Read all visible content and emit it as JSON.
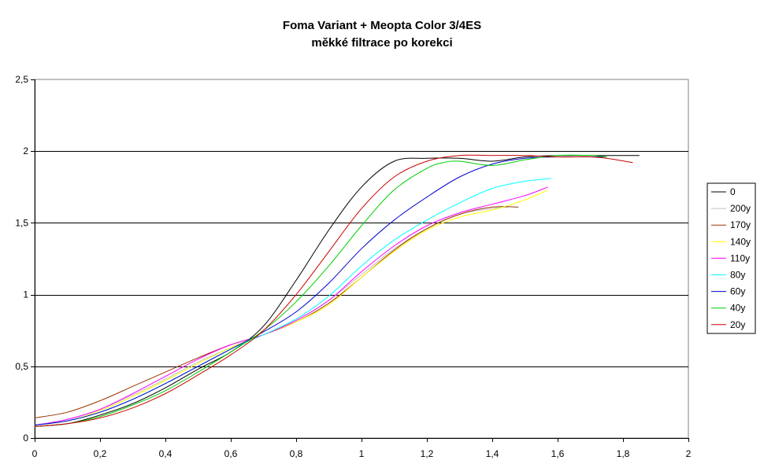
{
  "chart_data": {
    "type": "line",
    "title": "Foma Variant + Meopta Color 3/4ES",
    "subtitle": "měkké filtrace po korekci",
    "xlabel": "",
    "ylabel": "",
    "xlim": [
      0,
      2
    ],
    "ylim": [
      0,
      2.5
    ],
    "x_ticks": [
      0,
      0.2,
      0.4,
      0.6,
      0.8,
      1,
      1.2,
      1.4,
      1.6,
      1.8,
      2
    ],
    "x_tick_labels": [
      "0",
      "0,2",
      "0,4",
      "0,6",
      "0,8",
      "1",
      "1,2",
      "1,4",
      "1,6",
      "1,8",
      "2"
    ],
    "y_ticks": [
      0,
      0.5,
      1,
      1.5,
      2,
      2.5
    ],
    "y_tick_labels": [
      "0",
      "0,5",
      "1",
      "1,5",
      "2",
      "2,5"
    ],
    "grid": "horizontal",
    "legend_position": "right",
    "series": [
      {
        "name": "0",
        "color": "#000000",
        "x": [
          0,
          0.1,
          0.2,
          0.3,
          0.4,
          0.5,
          0.6,
          0.7,
          0.8,
          0.9,
          1.0,
          1.1,
          1.2,
          1.3,
          1.4,
          1.5,
          1.6,
          1.7,
          1.85
        ],
        "y": [
          0.08,
          0.1,
          0.16,
          0.24,
          0.35,
          0.48,
          0.6,
          0.78,
          1.1,
          1.45,
          1.75,
          1.93,
          1.95,
          1.95,
          1.93,
          1.96,
          1.97,
          1.97,
          1.97
        ]
      },
      {
        "name": "200y",
        "color": "#c0c0c0",
        "x": [
          0,
          0.1,
          0.2,
          0.3,
          0.4,
          0.5,
          0.6,
          0.7,
          0.8,
          0.9,
          1.0,
          1.1,
          1.2,
          1.3,
          1.4,
          1.45
        ],
        "y": [
          0.09,
          0.13,
          0.2,
          0.3,
          0.41,
          0.53,
          0.63,
          0.72,
          0.82,
          0.96,
          1.14,
          1.32,
          1.46,
          1.56,
          1.6,
          1.61
        ]
      },
      {
        "name": "170y",
        "color": "#993300",
        "x": [
          0,
          0.1,
          0.2,
          0.3,
          0.4,
          0.5,
          0.6,
          0.7,
          0.8,
          0.9,
          1.0,
          1.1,
          1.2,
          1.3,
          1.4,
          1.48
        ],
        "y": [
          0.14,
          0.18,
          0.26,
          0.36,
          0.46,
          0.56,
          0.65,
          0.72,
          0.81,
          0.94,
          1.12,
          1.31,
          1.46,
          1.56,
          1.61,
          1.61
        ]
      },
      {
        "name": "140y",
        "color": "#ffff00",
        "x": [
          0,
          0.1,
          0.2,
          0.3,
          0.4,
          0.5,
          0.6,
          0.7,
          0.8,
          0.9,
          1.0,
          1.1,
          1.2,
          1.3,
          1.4,
          1.5,
          1.57
        ],
        "y": [
          0.09,
          0.12,
          0.19,
          0.29,
          0.4,
          0.52,
          0.63,
          0.72,
          0.81,
          0.93,
          1.12,
          1.3,
          1.45,
          1.54,
          1.59,
          1.66,
          1.73
        ]
      },
      {
        "name": "110y",
        "color": "#ff00ff",
        "x": [
          0,
          0.1,
          0.2,
          0.3,
          0.4,
          0.5,
          0.6,
          0.7,
          0.8,
          0.9,
          1.0,
          1.1,
          1.2,
          1.3,
          1.4,
          1.5,
          1.57
        ],
        "y": [
          0.09,
          0.13,
          0.2,
          0.31,
          0.43,
          0.55,
          0.65,
          0.72,
          0.82,
          0.96,
          1.16,
          1.34,
          1.48,
          1.57,
          1.63,
          1.69,
          1.75
        ]
      },
      {
        "name": "80y",
        "color": "#00ffff",
        "x": [
          0,
          0.1,
          0.2,
          0.3,
          0.4,
          0.5,
          0.6,
          0.7,
          0.8,
          0.9,
          1.0,
          1.1,
          1.2,
          1.3,
          1.4,
          1.5,
          1.58
        ],
        "y": [
          0.09,
          0.12,
          0.18,
          0.27,
          0.38,
          0.5,
          0.62,
          0.72,
          0.83,
          0.99,
          1.2,
          1.38,
          1.52,
          1.64,
          1.74,
          1.79,
          1.81
        ]
      },
      {
        "name": "60y",
        "color": "#0000cc",
        "x": [
          0,
          0.1,
          0.2,
          0.3,
          0.4,
          0.5,
          0.6,
          0.7,
          0.8,
          0.9,
          1.0,
          1.1,
          1.2,
          1.3,
          1.4,
          1.5,
          1.6,
          1.7,
          1.75
        ],
        "y": [
          0.09,
          0.12,
          0.18,
          0.27,
          0.38,
          0.5,
          0.62,
          0.74,
          0.88,
          1.08,
          1.32,
          1.52,
          1.68,
          1.82,
          1.91,
          1.95,
          1.96,
          1.96,
          1.96
        ]
      },
      {
        "name": "40y",
        "color": "#00cc00",
        "x": [
          0,
          0.1,
          0.2,
          0.3,
          0.4,
          0.5,
          0.6,
          0.7,
          0.8,
          0.9,
          1.0,
          1.1,
          1.2,
          1.25,
          1.3,
          1.4,
          1.5,
          1.6,
          1.7,
          1.75
        ],
        "y": [
          0.08,
          0.1,
          0.15,
          0.23,
          0.33,
          0.46,
          0.6,
          0.75,
          0.95,
          1.2,
          1.48,
          1.73,
          1.88,
          1.92,
          1.93,
          1.9,
          1.94,
          1.97,
          1.97,
          1.96
        ]
      },
      {
        "name": "20y",
        "color": "#cc0000",
        "x": [
          0,
          0.1,
          0.2,
          0.3,
          0.4,
          0.5,
          0.6,
          0.7,
          0.8,
          0.9,
          1.0,
          1.1,
          1.2,
          1.3,
          1.4,
          1.5,
          1.6,
          1.7,
          1.75,
          1.83
        ],
        "y": [
          0.08,
          0.1,
          0.14,
          0.21,
          0.31,
          0.44,
          0.58,
          0.75,
          1.0,
          1.3,
          1.6,
          1.82,
          1.93,
          1.97,
          1.97,
          1.97,
          1.96,
          1.96,
          1.95,
          1.92
        ]
      }
    ]
  }
}
